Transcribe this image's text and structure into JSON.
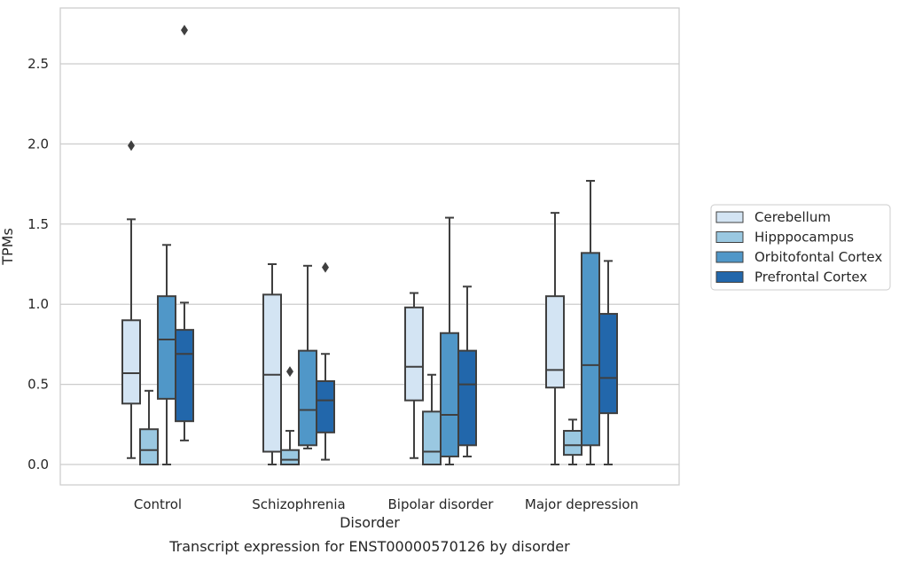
{
  "chart_data": {
    "type": "box",
    "title": "",
    "caption": "Transcript expression for ENST00000570126 by disorder",
    "xlabel": "Disorder",
    "ylabel": "TPMs",
    "ylim": [
      -0.13,
      2.85
    ],
    "yticks": [
      0.0,
      0.5,
      1.0,
      1.5,
      2.0,
      2.5
    ],
    "ytick_labels": [
      "0.0",
      "0.5",
      "1.0",
      "1.5",
      "2.0",
      "2.5"
    ],
    "grid": "horizontal",
    "legend_position": "right",
    "categories": [
      "Control",
      "Schizophrenia",
      "Bipolar disorder",
      "Major depression"
    ],
    "series": [
      {
        "name": "Cerebellum",
        "color": "#d3e4f3",
        "boxes": [
          {
            "whislo": 0.04,
            "q1": 0.38,
            "med": 0.57,
            "q3": 0.9,
            "whishi": 1.53,
            "fliers": [
              1.99
            ]
          },
          {
            "whislo": 0.0,
            "q1": 0.08,
            "med": 0.56,
            "q3": 1.06,
            "whishi": 1.25,
            "fliers": []
          },
          {
            "whislo": 0.04,
            "q1": 0.4,
            "med": 0.61,
            "q3": 0.98,
            "whishi": 1.07,
            "fliers": []
          },
          {
            "whislo": 0.0,
            "q1": 0.48,
            "med": 0.59,
            "q3": 1.05,
            "whishi": 1.57,
            "fliers": []
          }
        ]
      },
      {
        "name": "Hipppocampus",
        "color": "#9ac8e1",
        "boxes": [
          {
            "whislo": 0.0,
            "q1": 0.0,
            "med": 0.09,
            "q3": 0.22,
            "whishi": 0.46,
            "fliers": []
          },
          {
            "whislo": 0.0,
            "q1": 0.0,
            "med": 0.03,
            "q3": 0.09,
            "whishi": 0.21,
            "fliers": [
              0.58
            ]
          },
          {
            "whislo": 0.0,
            "q1": 0.0,
            "med": 0.08,
            "q3": 0.33,
            "whishi": 0.56,
            "fliers": []
          },
          {
            "whislo": 0.0,
            "q1": 0.06,
            "med": 0.12,
            "q3": 0.21,
            "whishi": 0.28,
            "fliers": []
          }
        ]
      },
      {
        "name": "Orbitofontal Cortex",
        "color": "#5097c8",
        "boxes": [
          {
            "whislo": 0.0,
            "q1": 0.41,
            "med": 0.78,
            "q3": 1.05,
            "whishi": 1.37,
            "fliers": []
          },
          {
            "whislo": 0.1,
            "q1": 0.12,
            "med": 0.34,
            "q3": 0.71,
            "whishi": 1.24,
            "fliers": []
          },
          {
            "whislo": 0.0,
            "q1": 0.05,
            "med": 0.31,
            "q3": 0.82,
            "whishi": 1.54,
            "fliers": []
          },
          {
            "whislo": 0.0,
            "q1": 0.12,
            "med": 0.62,
            "q3": 1.32,
            "whishi": 1.77,
            "fliers": []
          }
        ]
      },
      {
        "name": "Prefrontal Cortex",
        "color": "#2267ab",
        "boxes": [
          {
            "whislo": 0.15,
            "q1": 0.27,
            "med": 0.69,
            "q3": 0.84,
            "whishi": 1.01,
            "fliers": [
              2.71
            ]
          },
          {
            "whislo": 0.03,
            "q1": 0.2,
            "med": 0.4,
            "q3": 0.52,
            "whishi": 0.69,
            "fliers": [
              1.23
            ]
          },
          {
            "whislo": 0.05,
            "q1": 0.12,
            "med": 0.5,
            "q3": 0.71,
            "whishi": 1.11,
            "fliers": []
          },
          {
            "whislo": 0.0,
            "q1": 0.32,
            "med": 0.54,
            "q3": 0.94,
            "whishi": 1.27,
            "fliers": []
          }
        ]
      }
    ]
  }
}
